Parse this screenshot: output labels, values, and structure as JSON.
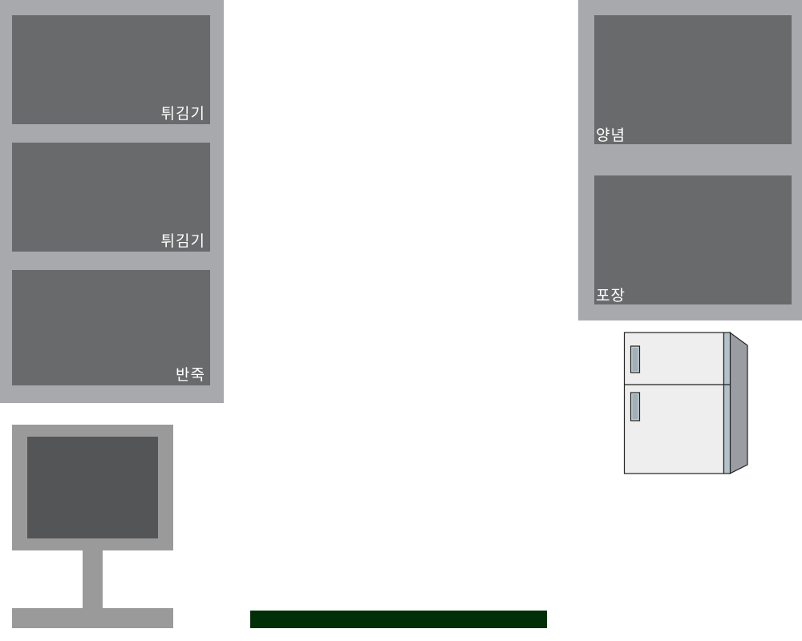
{
  "left_stations": [
    {
      "label": "튀김기"
    },
    {
      "label": "튀김기"
    },
    {
      "label": "반죽"
    }
  ],
  "right_stations": [
    {
      "label": "양념"
    },
    {
      "label": "포장"
    }
  ],
  "colors": {
    "panel": "#a8a9ac",
    "station": "#696a6c",
    "monitor_frame": "#9a9a9a",
    "monitor_screen": "#545557",
    "counter": "#002e07"
  },
  "icons": {
    "monitor": "monitor-icon",
    "fridge": "refrigerator-icon"
  }
}
